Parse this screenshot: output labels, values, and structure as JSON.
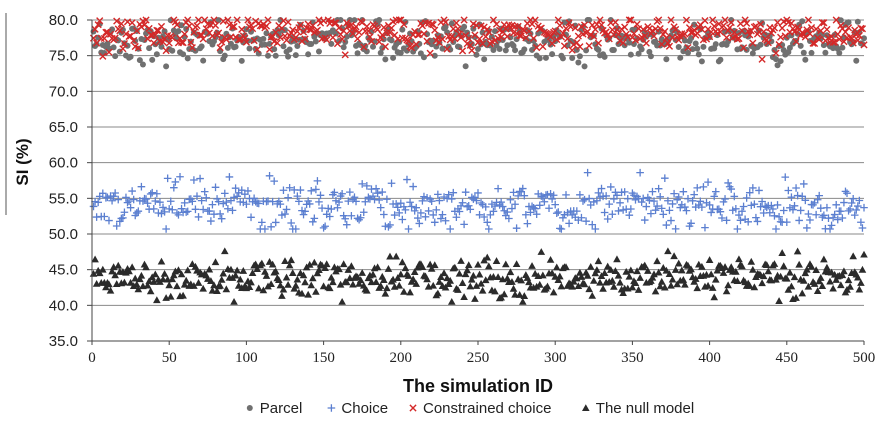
{
  "chart_data": {
    "type": "scatter",
    "title": "",
    "xlabel": "The simulation ID",
    "ylabel": "SI (%)",
    "xlim": [
      0,
      500
    ],
    "ylim": [
      35,
      80
    ],
    "xticks": [
      "0",
      "50",
      "100",
      "150",
      "200",
      "250",
      "300",
      "350",
      "400",
      "450",
      "500"
    ],
    "yticks": [
      "35.0",
      "40.0",
      "45.0",
      "50.0",
      "55.0",
      "60.0",
      "65.0",
      "70.0",
      "75.0",
      "80.0"
    ],
    "grid": "horizontal",
    "legend_position": "bottom",
    "series": [
      {
        "name": "Parcel",
        "marker": "circle",
        "color": "#707070",
        "points_per_series": 500,
        "values_summary": {
          "typical_range": [
            74,
            80
          ],
          "mean": 77.0,
          "min": 73.5,
          "max": 80
        }
      },
      {
        "name": "Choice",
        "marker": "plus",
        "color": "#5b7fd0",
        "points_per_series": 500,
        "values_summary": {
          "typical_range": [
            51,
            58
          ],
          "mean": 54.0,
          "min": 50.7,
          "max": 58.6
        }
      },
      {
        "name": "Constrained choice",
        "marker": "x",
        "color": "#d42828",
        "points_per_series": 500,
        "values_summary": {
          "typical_range": [
            75,
            80
          ],
          "mean": 78.3,
          "min": 74.5,
          "max": 80
        }
      },
      {
        "name": "The null model",
        "marker": "triangle",
        "color": "#2b2b2b",
        "points_per_series": 500,
        "values_summary": {
          "typical_range": [
            41,
            47
          ],
          "mean": 44.0,
          "min": 40.5,
          "max": 47.6
        }
      }
    ]
  }
}
